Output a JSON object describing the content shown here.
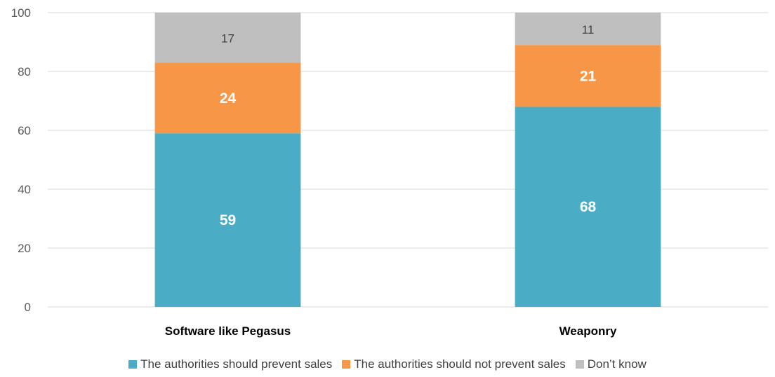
{
  "chart_data": {
    "type": "bar",
    "stacked": true,
    "categories": [
      "Software like Pegasus",
      "Weaponry"
    ],
    "series": [
      {
        "name": "The authorities should prevent sales",
        "values": [
          59,
          68
        ],
        "color": "#4BACC6",
        "label_style": "white-bold"
      },
      {
        "name": "The authorities should not prevent sales",
        "values": [
          24,
          21
        ],
        "color": "#F79646",
        "label_style": "white-bold"
      },
      {
        "name": "Don’t know",
        "values": [
          17,
          11
        ],
        "color": "#BFBFBF",
        "label_style": "dark"
      }
    ],
    "yticks": [
      "0",
      "20",
      "40",
      "60",
      "80",
      "100"
    ],
    "ylim": [
      0,
      100
    ],
    "grid": true,
    "legend_position": "bottom"
  }
}
